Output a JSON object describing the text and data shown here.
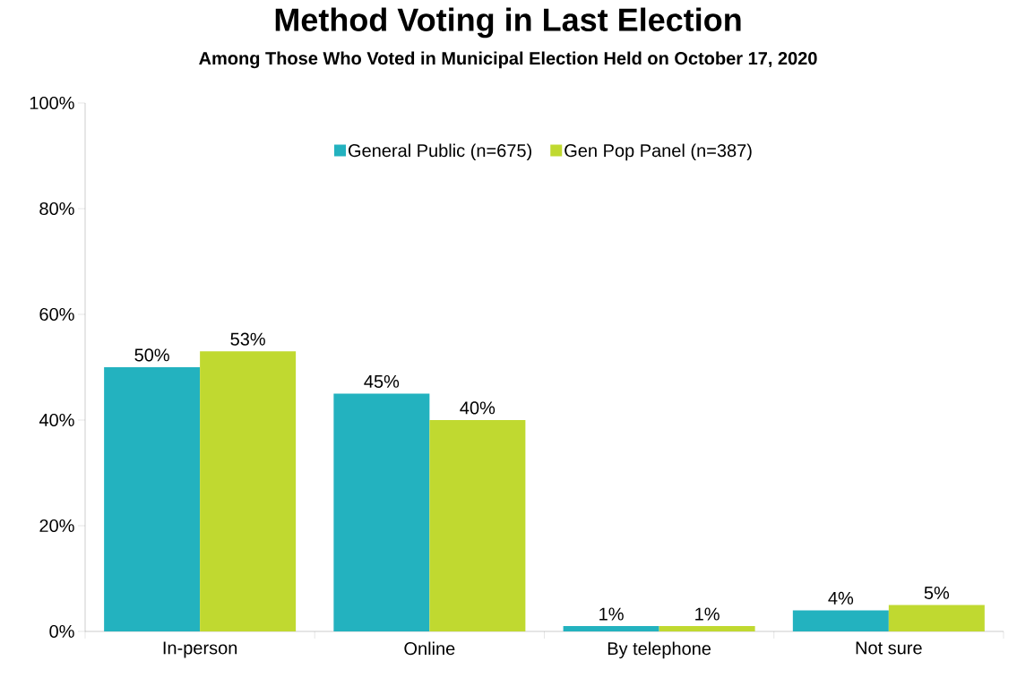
{
  "chart_data": {
    "type": "bar",
    "title": "Method Voting in Last Election",
    "subtitle": "Among Those Who Voted in Municipal Election Held on October 17, 2020",
    "categories": [
      "In-person",
      "Online",
      "By telephone",
      "Not sure"
    ],
    "series": [
      {
        "name": "General Public (n=675)",
        "color": "#23b2bf",
        "values": [
          50,
          45,
          1,
          4
        ],
        "value_labels": [
          "50%",
          "45%",
          "1%",
          "4%"
        ]
      },
      {
        "name": "Gen Pop Panel (n=387)",
        "color": "#c0d930",
        "values": [
          53,
          40,
          1,
          5
        ],
        "value_labels": [
          "53%",
          "40%",
          "1%",
          "5%"
        ]
      }
    ],
    "ylim": [
      0,
      100
    ],
    "yticks": [
      {
        "value": 0,
        "label": "0%"
      },
      {
        "value": 20,
        "label": "20%"
      },
      {
        "value": 40,
        "label": "40%"
      },
      {
        "value": 60,
        "label": "60%"
      },
      {
        "value": 80,
        "label": "80%"
      },
      {
        "value": 100,
        "label": "100%"
      }
    ],
    "grid": false,
    "legend": "top"
  }
}
